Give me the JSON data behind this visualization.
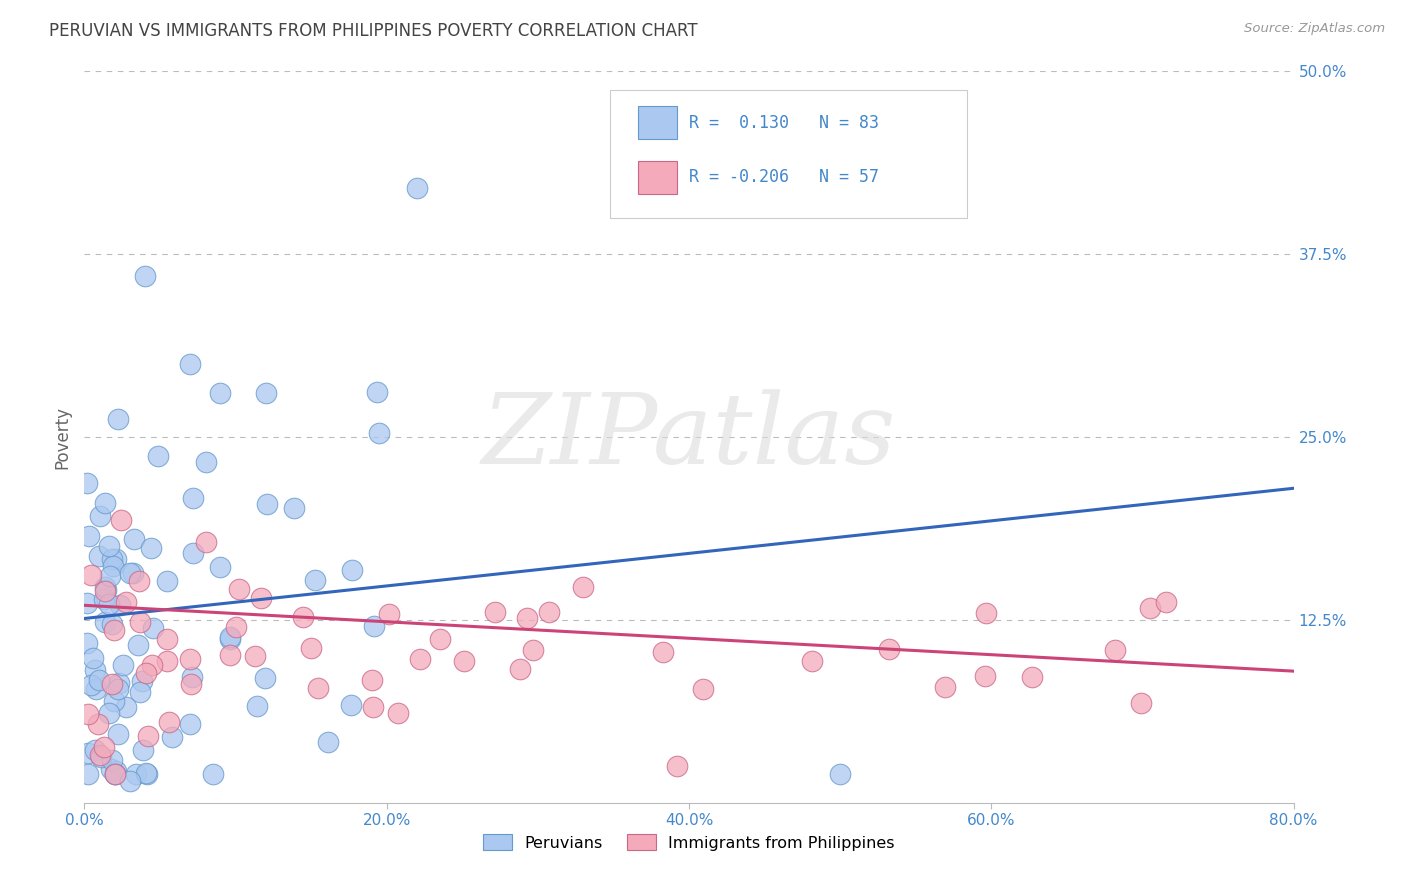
{
  "title": "PERUVIAN VS IMMIGRANTS FROM PHILIPPINES POVERTY CORRELATION CHART",
  "source_text": "Source: ZipAtlas.com",
  "ylabel": "Poverty",
  "xlim": [
    0.0,
    0.8
  ],
  "ylim": [
    0.0,
    0.5
  ],
  "R_peruvian": 0.13,
  "N_peruvian": 83,
  "R_philippines": -0.206,
  "N_philippines": 57,
  "color_peruvian_fill": "#aac8f0",
  "color_peruvian_edge": "#6699cc",
  "color_philippines_fill": "#f4aabb",
  "color_philippines_edge": "#cc6688",
  "color_line_peruvian": "#3366bb",
  "color_line_philippines": "#cc4477",
  "color_axis_text": "#4488cc",
  "watermark_color": "#dddddd",
  "background_color": "#ffffff",
  "grid_color": "#bbbbbb",
  "title_fontsize": 12,
  "legend_box_R1": "R =  0.130   N = 83",
  "legend_box_R2": "R = -0.206   N = 57",
  "line_per_y0": 0.126,
  "line_per_y1": 0.215,
  "line_phi_y0": 0.135,
  "line_phi_y1": 0.09
}
